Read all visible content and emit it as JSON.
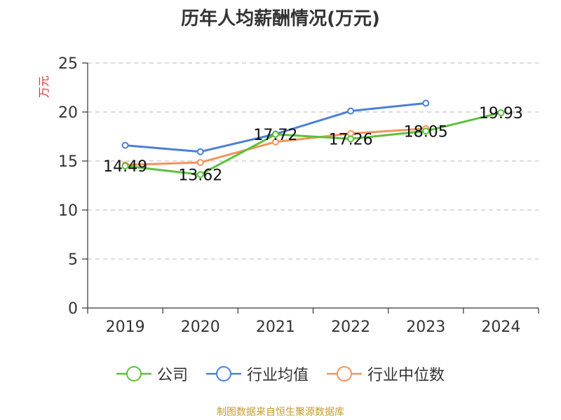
{
  "title": "历年人均薪酬情况(万元)",
  "source": "制图数据来自恒生聚源数据库",
  "chart_data": {
    "type": "line",
    "title": "历年人均薪酬情况(万元)",
    "ylabel": "万元",
    "xlabel": "",
    "categories": [
      "2019",
      "2020",
      "2021",
      "2022",
      "2023",
      "2024"
    ],
    "ylim": [
      0,
      25
    ],
    "yticks": [
      0,
      5,
      10,
      15,
      20,
      25
    ],
    "grid": "horizontal-dashed",
    "legend_position": "bottom",
    "series": [
      {
        "name": "公司",
        "color": "#5cc13a",
        "values": [
          14.49,
          13.62,
          17.72,
          17.26,
          18.05,
          19.93
        ],
        "labels": [
          "14.49",
          "13.62",
          "17.72",
          "17.26",
          "18.05",
          "19.93"
        ]
      },
      {
        "name": "行业均值",
        "color": "#4b7fd6",
        "values": [
          16.6,
          15.95,
          17.75,
          20.1,
          20.9,
          null
        ]
      },
      {
        "name": "行业中位数",
        "color": "#f4935a",
        "values": [
          14.6,
          14.85,
          16.95,
          17.8,
          18.3,
          null
        ]
      }
    ]
  }
}
